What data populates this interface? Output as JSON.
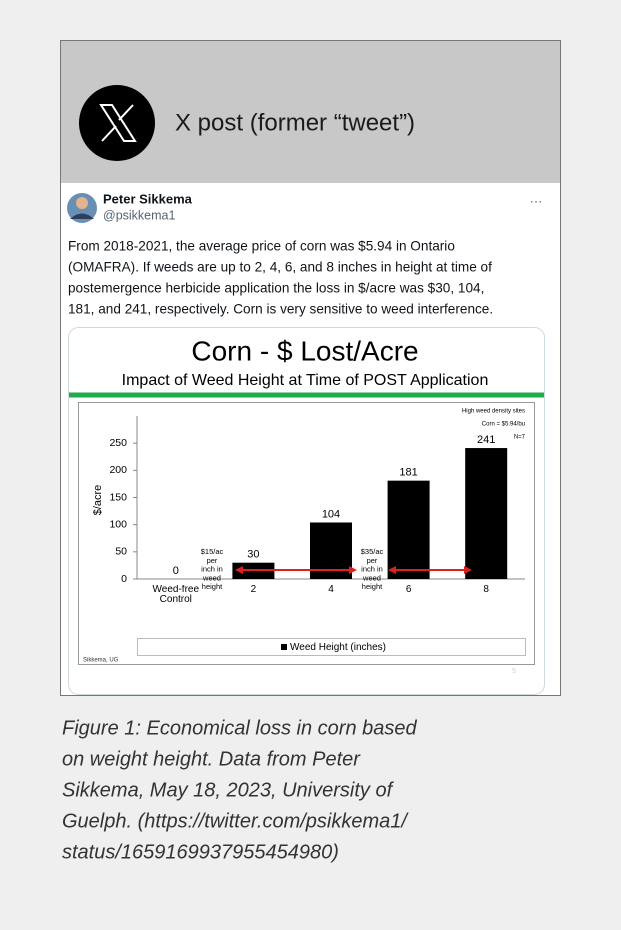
{
  "header": {
    "title": "X post (former “tweet”)"
  },
  "tweet": {
    "author": "Peter Sikkema",
    "handle": "@psikkema1",
    "more": "···",
    "text_lines": [
      "From 2018-2021, the average price of corn was $5.94 in Ontario",
      "(OMAFRA). If weeds are up to 2, 4, 6, and 8 inches in height at time of",
      "postemergence herbicide application the loss in $/acre was $30, 104,",
      "181, and 241, respectively. Corn is very sensitive to weed interference."
    ]
  },
  "chart_data": {
    "type": "bar",
    "title": "Corn - $ Lost/Acre",
    "subtitle": "Impact of Weed Height at Time of POST Application",
    "y_label": "$/acre",
    "categories": [
      "Weed-free Control",
      "2",
      "4",
      "6",
      "8"
    ],
    "series": [
      {
        "name": "Weed Height (inches)",
        "color": "#000000",
        "values": [
          0,
          30,
          104,
          181,
          241
        ]
      }
    ],
    "ylim": [
      0,
      300
    ],
    "yticks": [
      0,
      50,
      100,
      150,
      200,
      250
    ],
    "notes": [
      "High weed density sites",
      "Corn = $5.94/bu",
      "N=7"
    ],
    "annotations": [
      {
        "lines": [
          "$15/ac",
          "per",
          "inch in",
          "weed",
          "height"
        ]
      },
      {
        "lines": [
          "$35/ac",
          "per",
          "inch in",
          "weed",
          "height"
        ]
      }
    ],
    "arrow_color": "#e0201f",
    "rule_color": "#1faa4b",
    "source": "Sikkema, UG",
    "page_number": "5"
  },
  "caption": {
    "lines": [
      "Figure 1: Economical loss in corn based",
      "on weight height. Data from Peter",
      "Sikkema, May 18, 2023, University of",
      "Guelph. (https://twitter.com/psikkema1/",
      "status/1659169937955454980)"
    ]
  }
}
